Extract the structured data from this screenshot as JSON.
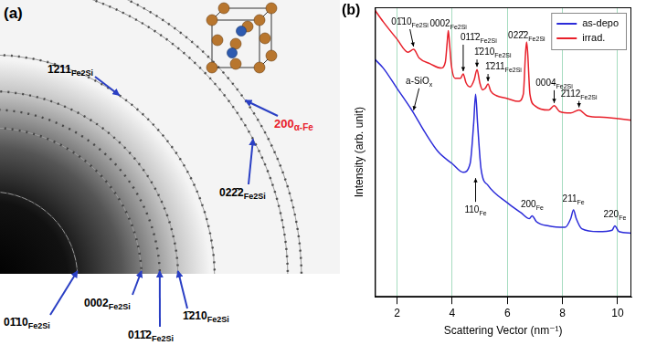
{
  "panel_a": {
    "letter": "(a)",
    "labels": [
      {
        "text": "1̄211",
        "sub": "Fe2Si"
      },
      {
        "text": "200",
        "sub": "α-Fe",
        "color": "#e8202a"
      },
      {
        "text": "022̄2",
        "sub": "Fe2Si"
      },
      {
        "text": "01̄10",
        "sub": "Fe2Si"
      },
      {
        "text": "0002",
        "sub": "Fe2Si"
      },
      {
        "text": "011̄2",
        "sub": "Fe2Si"
      },
      {
        "text": "1̄210",
        "sub": "Fe2Si"
      }
    ]
  },
  "chart_data": {
    "letter": "(b)",
    "type": "line",
    "x_label": "Scattering Vector (nm⁻¹)",
    "y_label": "Intensity (arb. unit)",
    "xlim": [
      1.2,
      10.5
    ],
    "xticks": [
      2,
      4,
      6,
      8,
      10
    ],
    "ylim": [
      0,
      100
    ],
    "grid": true,
    "tick_labels": "x",
    "legend": "top-right",
    "series": [
      {
        "name": "as-depo",
        "color": "#2b2bd9",
        "x": [
          1.2,
          1.5,
          2.0,
          2.5,
          2.6,
          3.0,
          3.5,
          4.0,
          4.4,
          4.65,
          4.78,
          4.85,
          4.92,
          5.05,
          5.3,
          6.0,
          6.5,
          6.8,
          6.9,
          7.05,
          7.5,
          8.1,
          8.3,
          8.4,
          8.5,
          8.7,
          9.3,
          9.8,
          9.9,
          10.05,
          10.5
        ],
        "values": [
          82,
          79,
          72,
          65,
          63.5,
          57,
          50,
          46,
          43,
          46,
          60,
          70,
          60,
          44,
          38.5,
          32.5,
          29,
          27,
          28,
          26,
          24.5,
          24,
          27,
          30,
          27,
          23.5,
          22.5,
          23,
          24.5,
          22.5,
          22
        ]
      },
      {
        "name": "irrad.",
        "color": "#e8202a",
        "x": [
          1.2,
          1.5,
          2.0,
          2.4,
          2.6,
          2.8,
          3.2,
          3.6,
          3.75,
          3.82,
          3.86,
          3.9,
          3.97,
          4.1,
          4.3,
          4.4,
          4.5,
          4.65,
          4.8,
          4.9,
          5.0,
          5.1,
          5.2,
          5.3,
          5.4,
          5.6,
          6.0,
          6.4,
          6.58,
          6.66,
          6.7,
          6.74,
          6.82,
          7.0,
          7.5,
          7.7,
          7.9,
          8.3,
          8.6,
          8.9,
          9.5,
          10.5
        ],
        "values": [
          99,
          95,
          89,
          84.5,
          85.5,
          82.5,
          80.5,
          79,
          81,
          88,
          92,
          88,
          80,
          75.5,
          75.5,
          77,
          74,
          72.5,
          75,
          78.5,
          74,
          71.5,
          72,
          73.5,
          71,
          69.5,
          68.5,
          67.5,
          70,
          84,
          88,
          84,
          70,
          66,
          64.5,
          66,
          64,
          63.5,
          64.5,
          62.5,
          62,
          61
        ]
      }
    ],
    "annotations": [
      {
        "text": "01̄10",
        "sub": "Fe2Si",
        "x": 2.6,
        "series": "irrad."
      },
      {
        "text": "0002",
        "sub": "Fe2Si",
        "x": 3.86,
        "series": "irrad."
      },
      {
        "text": "011̄2",
        "sub": "Fe2Si",
        "x": 4.4,
        "series": "irrad."
      },
      {
        "text": "1̄210",
        "sub": "Fe2Si",
        "x": 4.9,
        "series": "irrad."
      },
      {
        "text": "1̄211",
        "sub": "Fe2Si",
        "x": 5.3,
        "series": "irrad."
      },
      {
        "text": "022̄2",
        "sub": "Fe2Si",
        "x": 6.7,
        "series": "irrad."
      },
      {
        "text": "0004",
        "sub": "Fe2Si",
        "x": 7.7,
        "series": "irrad."
      },
      {
        "text": "2̄112",
        "sub": "Fe2Si",
        "x": 8.6,
        "series": "irrad."
      },
      {
        "text": "a-SiO",
        "sub": "x",
        "x": 2.6,
        "series": "as-depo"
      },
      {
        "text": "110",
        "sub": "Fe",
        "x": 4.85,
        "series": "as-depo"
      },
      {
        "text": "200",
        "sub": "Fe",
        "x": 6.9,
        "series": "as-depo"
      },
      {
        "text": "211",
        "sub": "Fe",
        "x": 8.4,
        "series": "as-depo"
      },
      {
        "text": "220",
        "sub": "Fe",
        "x": 9.9,
        "series": "as-depo"
      }
    ]
  }
}
